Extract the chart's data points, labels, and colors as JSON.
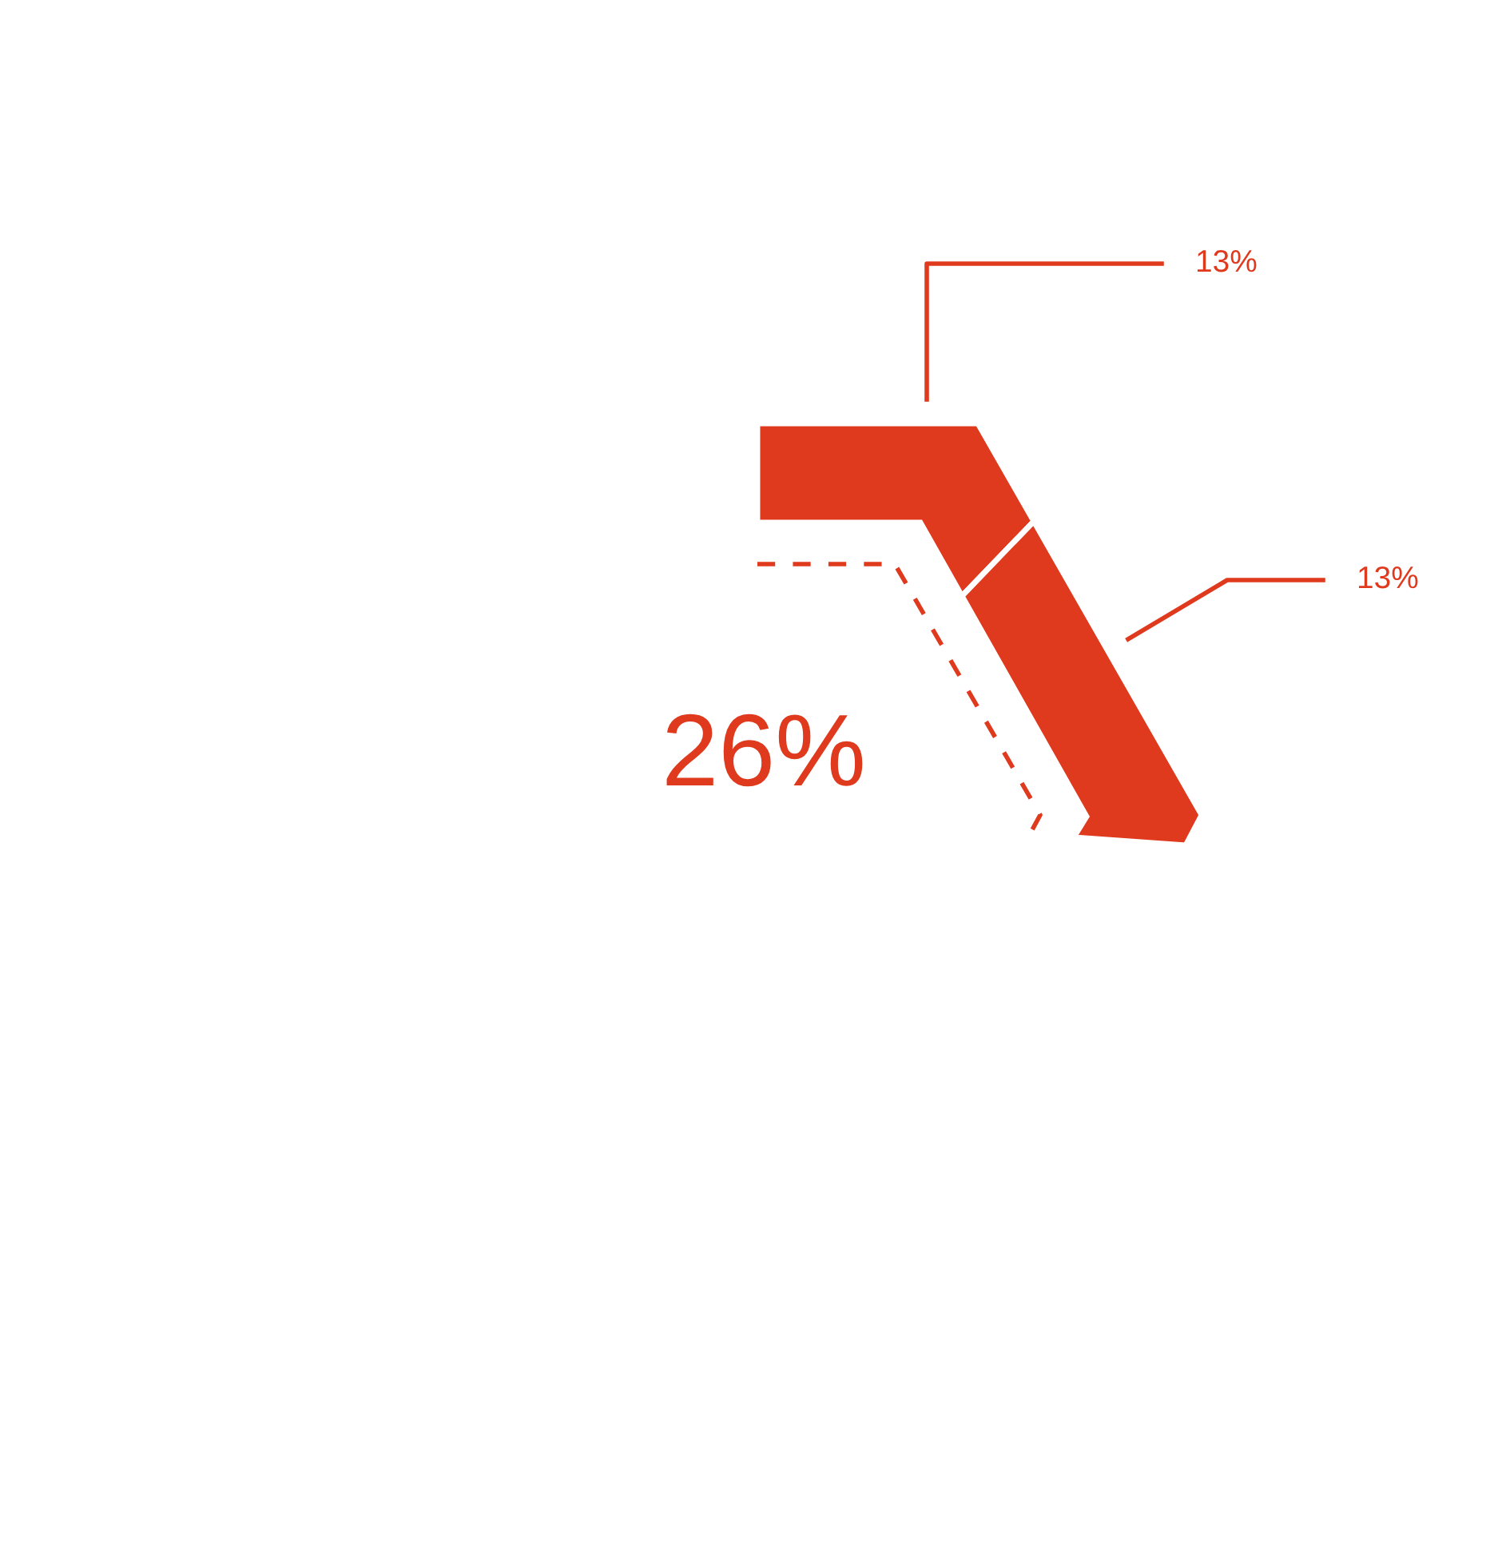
{
  "chart_data": {
    "type": "other",
    "categories": [
      null,
      null
    ],
    "values": [
      13,
      13
    ],
    "value_labels": [
      "13%",
      "13%"
    ],
    "colors": [
      "#e03a1e",
      "#e03a1e"
    ],
    "annotations": [
      "26%"
    ]
  }
}
